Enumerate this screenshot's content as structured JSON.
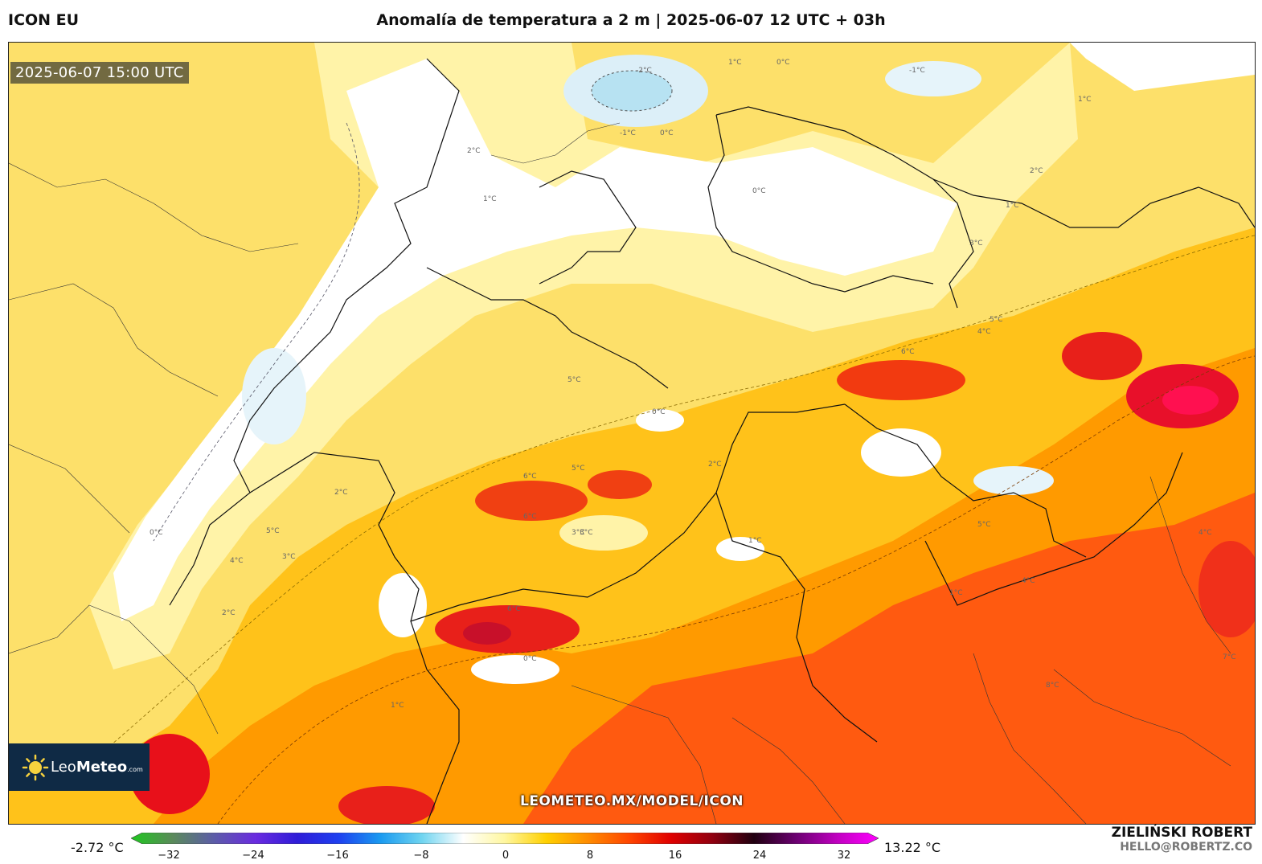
{
  "header": {
    "model": "ICON EU",
    "title": "Anomalía de temperatura a 2 m | 2025-06-07 12 UTC + 03h"
  },
  "map": {
    "valid_time": "2025-06-07 15:00 UTC",
    "watermark": "LEOMETEO.MX/MODEL/ICON",
    "logo": {
      "prefix": "Leo",
      "bold": "Meteo",
      "suffix": ".com"
    },
    "contour_labels": [
      {
        "text": "-2°C"
      },
      {
        "text": "-1°C"
      },
      {
        "text": "0°C"
      },
      {
        "text": "1°C"
      },
      {
        "text": "0°C"
      },
      {
        "text": "-1°C"
      },
      {
        "text": "1°C"
      },
      {
        "text": "2°C"
      },
      {
        "text": "1°C"
      },
      {
        "text": "0°C"
      },
      {
        "text": "1°C"
      },
      {
        "text": "2°C"
      },
      {
        "text": "3°C"
      },
      {
        "text": "4°C"
      },
      {
        "text": "5°C"
      },
      {
        "text": "6°C"
      },
      {
        "text": "6°C"
      },
      {
        "text": "5°C"
      },
      {
        "text": "0°C"
      },
      {
        "text": "2°C"
      },
      {
        "text": "3°C"
      },
      {
        "text": "5°C"
      },
      {
        "text": "1°C"
      },
      {
        "text": "4°C"
      },
      {
        "text": "6°C"
      },
      {
        "text": "0°C"
      },
      {
        "text": "1°C"
      },
      {
        "text": "2°C"
      },
      {
        "text": "8°C"
      },
      {
        "text": "7°C"
      },
      {
        "text": "3°C"
      },
      {
        "text": "5°C"
      },
      {
        "text": "4°C"
      },
      {
        "text": "0°C"
      },
      {
        "text": "1°C"
      },
      {
        "text": "6°C"
      },
      {
        "text": "5°C"
      },
      {
        "text": "2°C"
      },
      {
        "text": "3°C"
      },
      {
        "text": "4°C"
      }
    ]
  },
  "legend": {
    "min_value": "-2.72 °C",
    "max_value": "13.22 °C",
    "ticks": [
      "−32",
      "−24",
      "−16",
      "−8",
      "0",
      "8",
      "16",
      "24",
      "32"
    ],
    "color_stops": [
      "#1ec81e",
      "#5a8a5a",
      "#5c5ca8",
      "#6a2be0",
      "#2f1cd8",
      "#1e40f0",
      "#1a9af0",
      "#6fd4f0",
      "#ffffff",
      "#fff7a0",
      "#ffd000",
      "#ff8c00",
      "#ff4500",
      "#e00000",
      "#900010",
      "#200010",
      "#6a0070",
      "#c000c0",
      "#ff00ff"
    ]
  },
  "credits": {
    "author": "ZIELIŃSKI ROBERT",
    "email": "HELLO@ROBERTZ.CO"
  }
}
